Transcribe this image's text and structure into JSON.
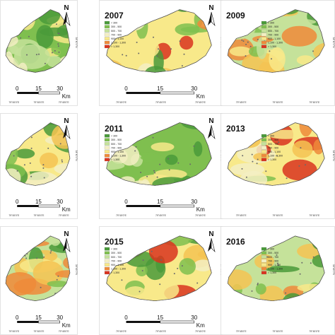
{
  "colors": {
    "dark_green": "#4a9a3a",
    "mid_green": "#7fbf4f",
    "light_green": "#c5e29a",
    "pale": "#f3efc3",
    "yellow": "#f8e98a",
    "light_orange": "#f5c352",
    "orange": "#ee8a3a",
    "red": "#d9341f",
    "frame": "#cfcfcf",
    "grid_tick": "#777777"
  },
  "legend_classes": [
    "< 300",
    "300 - 500",
    "500 - 700",
    "700 - 900",
    "900 - 1,100",
    "1,100 - 1,300",
    "> 1,300"
  ],
  "coord_label": "79°45'0\"E",
  "lat_label": "34°40'0\"N",
  "north_letter": "N",
  "scale": {
    "labels": [
      "0",
      "15",
      "30"
    ],
    "unit": "Km"
  },
  "panels": [
    {
      "id": "p1",
      "year": "",
      "has_legend": false,
      "has_north": true,
      "has_scale": true,
      "style": "green"
    },
    {
      "id": "p2",
      "year": "2007",
      "has_legend": true,
      "has_north": true,
      "has_scale": true,
      "style": "hot"
    },
    {
      "id": "p3",
      "year": "2009",
      "has_legend": true,
      "has_north": false,
      "has_scale": false,
      "style": "mixed"
    },
    {
      "id": "p4",
      "year": "",
      "has_legend": false,
      "has_north": true,
      "has_scale": true,
      "style": "yellow"
    },
    {
      "id": "p5",
      "year": "2011",
      "has_legend": true,
      "has_north": true,
      "has_scale": true,
      "style": "green"
    },
    {
      "id": "p6",
      "year": "2013",
      "has_legend": true,
      "has_north": false,
      "has_scale": false,
      "style": "hot"
    },
    {
      "id": "p7",
      "year": "",
      "has_legend": false,
      "has_north": true,
      "has_scale": true,
      "style": "mixed"
    },
    {
      "id": "p8",
      "year": "2015",
      "has_legend": true,
      "has_north": true,
      "has_scale": true,
      "style": "hot"
    },
    {
      "id": "p9",
      "year": "2016",
      "has_legend": true,
      "has_north": false,
      "has_scale": false,
      "style": "mixed"
    }
  ]
}
